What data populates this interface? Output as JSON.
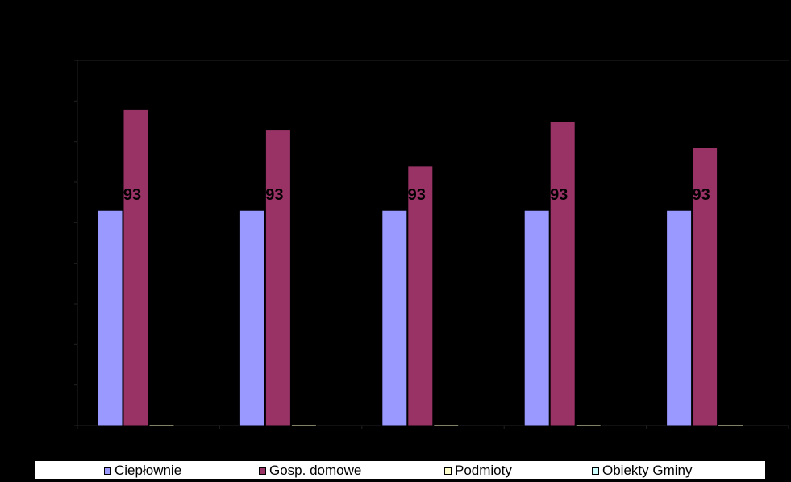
{
  "chart_data": {
    "type": "bar",
    "categories": [
      "",
      "",
      "",
      "",
      ""
    ],
    "ylim": [
      0,
      9
    ],
    "grid": false,
    "legend_position": "bottom",
    "series": [
      {
        "name": "Ciepłownie",
        "color": "#9999ff",
        "values": [
          5.3,
          5.3,
          5.3,
          5.3,
          5.3
        ]
      },
      {
        "name": "Gosp. domowe",
        "color": "#993366",
        "values": [
          7.8,
          7.3,
          6.4,
          7.5,
          6.85
        ]
      },
      {
        "name": "Podmioty",
        "color": "#ffffcc",
        "values": [
          0.03,
          0.03,
          0.03,
          0.03,
          0.03
        ]
      },
      {
        "name": "Obiekty Gminy",
        "color": "#ccffff",
        "values": [
          0,
          0,
          0,
          0,
          0
        ]
      }
    ],
    "data_labels": [
      "93",
      "93",
      "93",
      "93",
      "93"
    ]
  },
  "legend": {
    "items": [
      {
        "label": "Ciepłownie",
        "color": "#9999ff"
      },
      {
        "label": "Gosp. domowe",
        "color": "#993366"
      },
      {
        "label": "Podmioty",
        "color": "#ffffcc"
      },
      {
        "label": "Obiekty Gminy",
        "color": "#ccffff"
      }
    ]
  }
}
